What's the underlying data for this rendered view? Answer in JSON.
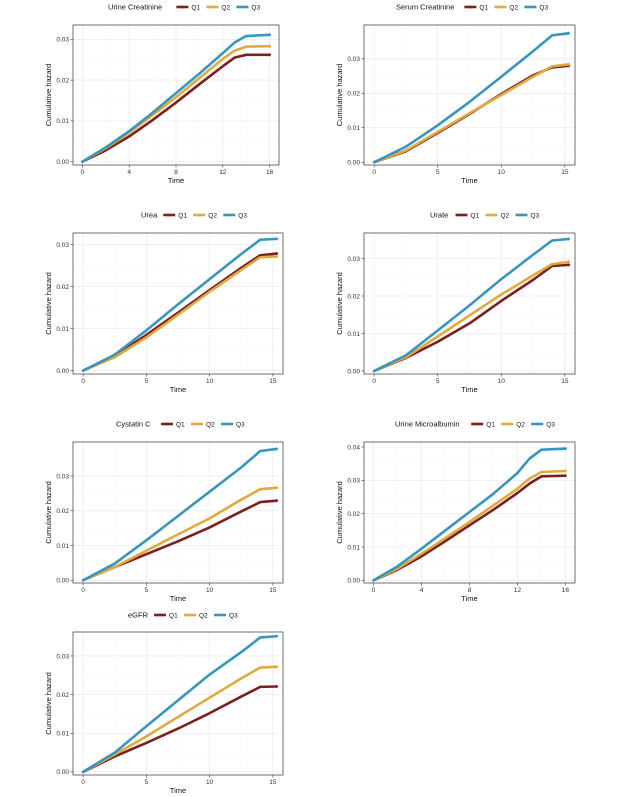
{
  "colors": {
    "Q1": "#7b1f1f",
    "Q2": "#e0aa3e",
    "Q3": "#3a95bd"
  },
  "chart_data": [
    {
      "type": "line",
      "title": "Urine Creatinine",
      "xlabel": "Time",
      "ylabel": "Cumulative hazard",
      "xlim": [
        -0.8,
        16.8
      ],
      "ylim": [
        -0.0008,
        0.0335
      ],
      "xticks": [
        0,
        4,
        8,
        12,
        16
      ],
      "yticks": [
        0.0,
        0.01,
        0.02,
        0.03
      ],
      "ytick_labels": [
        "0.00",
        "0.01",
        "0.02",
        "0.03"
      ],
      "legend": [
        "Q1",
        "Q2",
        "Q3"
      ],
      "series": [
        {
          "name": "Q1",
          "x": [
            0,
            2,
            4,
            6,
            8,
            10,
            12,
            13,
            14,
            16
          ],
          "y": [
            0,
            0.0028,
            0.0062,
            0.0102,
            0.0145,
            0.019,
            0.0234,
            0.0255,
            0.0262,
            0.0262
          ]
        },
        {
          "name": "Q2",
          "x": [
            0,
            2,
            4,
            6,
            8,
            10,
            12,
            13,
            14,
            16
          ],
          "y": [
            0,
            0.0033,
            0.0071,
            0.0114,
            0.0158,
            0.0205,
            0.0252,
            0.0272,
            0.0282,
            0.0283
          ]
        },
        {
          "name": "Q3",
          "x": [
            0,
            2,
            4,
            6,
            8,
            10,
            12,
            13,
            14,
            16
          ],
          "y": [
            0,
            0.0035,
            0.0075,
            0.012,
            0.0168,
            0.0216,
            0.0266,
            0.0292,
            0.0308,
            0.0311
          ]
        }
      ]
    },
    {
      "type": "line",
      "title": "Serum Creatinine",
      "xlabel": "Time",
      "ylabel": "Cumulative hazard",
      "xlim": [
        -0.8,
        15.8
      ],
      "ylim": [
        -0.0008,
        0.0398
      ],
      "xticks": [
        0,
        5,
        10,
        15
      ],
      "yticks": [
        0.0,
        0.01,
        0.02,
        0.03
      ],
      "ytick_labels": [
        "0.00",
        "0.01",
        "0.02",
        "0.03"
      ],
      "legend": [
        "Q1",
        "Q2",
        "Q3"
      ],
      "series": [
        {
          "name": "Q1",
          "x": [
            0,
            2.5,
            5,
            7.5,
            10,
            12.5,
            14,
            15.3
          ],
          "y": [
            0,
            0.0032,
            0.0085,
            0.014,
            0.0198,
            0.0252,
            0.0275,
            0.028
          ]
        },
        {
          "name": "Q2",
          "x": [
            0,
            2.5,
            5,
            7.5,
            10,
            12.5,
            14,
            15.3
          ],
          "y": [
            0,
            0.0034,
            0.0088,
            0.0142,
            0.0195,
            0.0248,
            0.0278,
            0.0284
          ]
        },
        {
          "name": "Q3",
          "x": [
            0,
            2.5,
            5,
            7.5,
            10,
            12.5,
            14,
            15.3
          ],
          "y": [
            0,
            0.0045,
            0.0107,
            0.0175,
            0.0248,
            0.0322,
            0.0368,
            0.0374
          ]
        }
      ]
    },
    {
      "type": "line",
      "title": "Urea",
      "xlabel": "Time",
      "ylabel": "Cumulative hazard",
      "xlim": [
        -0.8,
        15.8
      ],
      "ylim": [
        -0.0008,
        0.0328
      ],
      "xticks": [
        0,
        5,
        10,
        15
      ],
      "yticks": [
        0.0,
        0.01,
        0.02,
        0.03
      ],
      "ytick_labels": [
        "0.00",
        "0.01",
        "0.02",
        "0.03"
      ],
      "legend": [
        "Q1",
        "Q2",
        "Q3"
      ],
      "series": [
        {
          "name": "Q1",
          "x": [
            0,
            2.5,
            5,
            7.5,
            10,
            12.5,
            14,
            15.3
          ],
          "y": [
            0,
            0.0035,
            0.0085,
            0.0138,
            0.0192,
            0.0245,
            0.0275,
            0.0279
          ]
        },
        {
          "name": "Q2",
          "x": [
            0,
            2.5,
            5,
            7.5,
            10,
            12.5,
            14,
            15.3
          ],
          "y": [
            0,
            0.0032,
            0.0079,
            0.0133,
            0.0188,
            0.024,
            0.027,
            0.0272
          ]
        },
        {
          "name": "Q3",
          "x": [
            0,
            2.5,
            5,
            7.5,
            10,
            12.5,
            14,
            15.3
          ],
          "y": [
            0,
            0.0038,
            0.0096,
            0.0158,
            0.0218,
            0.0278,
            0.0312,
            0.0314
          ]
        }
      ]
    },
    {
      "type": "line",
      "title": "Urate",
      "xlabel": "Time",
      "ylabel": "Cumulative hazard",
      "xlim": [
        -0.8,
        15.8
      ],
      "ylim": [
        -0.0008,
        0.0368
      ],
      "xticks": [
        0,
        5,
        10,
        15
      ],
      "yticks": [
        0.0,
        0.01,
        0.02,
        0.03
      ],
      "ytick_labels": [
        "0.00",
        "0.01",
        "0.02",
        "0.03"
      ],
      "legend": [
        "Q1",
        "Q2",
        "Q3"
      ],
      "series": [
        {
          "name": "Q1",
          "x": [
            0,
            2.5,
            5,
            7.5,
            10,
            12.5,
            14,
            15.3
          ],
          "y": [
            0,
            0.0035,
            0.0078,
            0.0127,
            0.0187,
            0.0243,
            0.028,
            0.0283
          ]
        },
        {
          "name": "Q2",
          "x": [
            0,
            2.5,
            5,
            7.5,
            10,
            12.5,
            14,
            15.3
          ],
          "y": [
            0,
            0.0037,
            0.0092,
            0.0148,
            0.0204,
            0.0255,
            0.0285,
            0.0291
          ]
        },
        {
          "name": "Q3",
          "x": [
            0,
            2.5,
            5,
            7.5,
            10,
            12.5,
            14,
            15.3
          ],
          "y": [
            0,
            0.0042,
            0.0108,
            0.0175,
            0.0245,
            0.031,
            0.0348,
            0.0352
          ]
        }
      ]
    },
    {
      "type": "line",
      "title": "Cystatin C",
      "xlabel": "Time",
      "ylabel": "Cumulative hazard",
      "xlim": [
        -0.8,
        15.8
      ],
      "ylim": [
        -0.0008,
        0.0398
      ],
      "xticks": [
        0,
        5,
        10,
        15
      ],
      "yticks": [
        0.0,
        0.01,
        0.02,
        0.03
      ],
      "ytick_labels": [
        "0.00",
        "0.01",
        "0.02",
        "0.03"
      ],
      "legend": [
        "Q1",
        "Q2",
        "Q3"
      ],
      "series": [
        {
          "name": "Q1",
          "x": [
            0,
            2.5,
            5,
            7.5,
            10,
            12.5,
            14,
            15.3
          ],
          "y": [
            0,
            0.0038,
            0.0075,
            0.0112,
            0.0152,
            0.0198,
            0.0225,
            0.0229
          ]
        },
        {
          "name": "Q2",
          "x": [
            0,
            2.5,
            5,
            7.5,
            10,
            12.5,
            14,
            15.3
          ],
          "y": [
            0,
            0.0038,
            0.0085,
            0.0132,
            0.0178,
            0.0232,
            0.0262,
            0.0266
          ]
        },
        {
          "name": "Q3",
          "x": [
            0,
            2.5,
            5,
            7.5,
            10,
            12.5,
            14,
            15.3
          ],
          "y": [
            0,
            0.0048,
            0.0115,
            0.0185,
            0.0255,
            0.0325,
            0.0372,
            0.0378
          ]
        }
      ]
    },
    {
      "type": "line",
      "title": "Urine Microalbumin",
      "xlabel": "Time",
      "ylabel": "Cumulative hazard",
      "xlim": [
        -0.8,
        16.8
      ],
      "ylim": [
        -0.0008,
        0.0415
      ],
      "xticks": [
        0,
        4,
        8,
        12,
        16
      ],
      "yticks": [
        0.0,
        0.01,
        0.02,
        0.03,
        0.04
      ],
      "ytick_labels": [
        "0.00",
        "0.01",
        "0.02",
        "0.03",
        "0.04"
      ],
      "legend": [
        "Q1",
        "Q2",
        "Q3"
      ],
      "series": [
        {
          "name": "Q1",
          "x": [
            0,
            2,
            4,
            6,
            8,
            10,
            12,
            13,
            14,
            16
          ],
          "y": [
            0,
            0.0032,
            0.0072,
            0.0118,
            0.0165,
            0.0212,
            0.0262,
            0.029,
            0.0312,
            0.0314
          ]
        },
        {
          "name": "Q2",
          "x": [
            0,
            2,
            4,
            6,
            8,
            10,
            12,
            13,
            14,
            16
          ],
          "y": [
            0,
            0.0035,
            0.008,
            0.0127,
            0.0175,
            0.0225,
            0.0275,
            0.0305,
            0.0325,
            0.0328
          ]
        },
        {
          "name": "Q3",
          "x": [
            0,
            2,
            4,
            6,
            8,
            10,
            12,
            13,
            14,
            16
          ],
          "y": [
            0,
            0.0042,
            0.0095,
            0.015,
            0.0205,
            0.026,
            0.0322,
            0.0365,
            0.0392,
            0.0395
          ]
        }
      ]
    },
    {
      "type": "line",
      "title": "eGFR",
      "xlabel": "Time",
      "ylabel": "Cumulative hazard",
      "xlim": [
        -0.8,
        15.8
      ],
      "ylim": [
        -0.0008,
        0.0362
      ],
      "xticks": [
        0,
        5,
        10,
        15
      ],
      "yticks": [
        0.0,
        0.01,
        0.02,
        0.03
      ],
      "ytick_labels": [
        "0.00",
        "0.01",
        "0.02",
        "0.03"
      ],
      "legend": [
        "Q1",
        "Q2",
        "Q3"
      ],
      "series": [
        {
          "name": "Q1",
          "x": [
            0,
            2.5,
            5,
            7.5,
            10,
            12.5,
            14,
            15.3
          ],
          "y": [
            0,
            0.004,
            0.0075,
            0.0112,
            0.0152,
            0.0195,
            0.022,
            0.0221
          ]
        },
        {
          "name": "Q2",
          "x": [
            0,
            2.5,
            5,
            7.5,
            10,
            12.5,
            14,
            15.3
          ],
          "y": [
            0,
            0.0045,
            0.0092,
            0.0142,
            0.0192,
            0.0242,
            0.027,
            0.0272
          ]
        },
        {
          "name": "Q3",
          "x": [
            0,
            2.5,
            5,
            7.5,
            10,
            12.5,
            14,
            15.3
          ],
          "y": [
            0,
            0.005,
            0.0118,
            0.0185,
            0.0252,
            0.031,
            0.0348,
            0.0351
          ]
        }
      ]
    }
  ]
}
